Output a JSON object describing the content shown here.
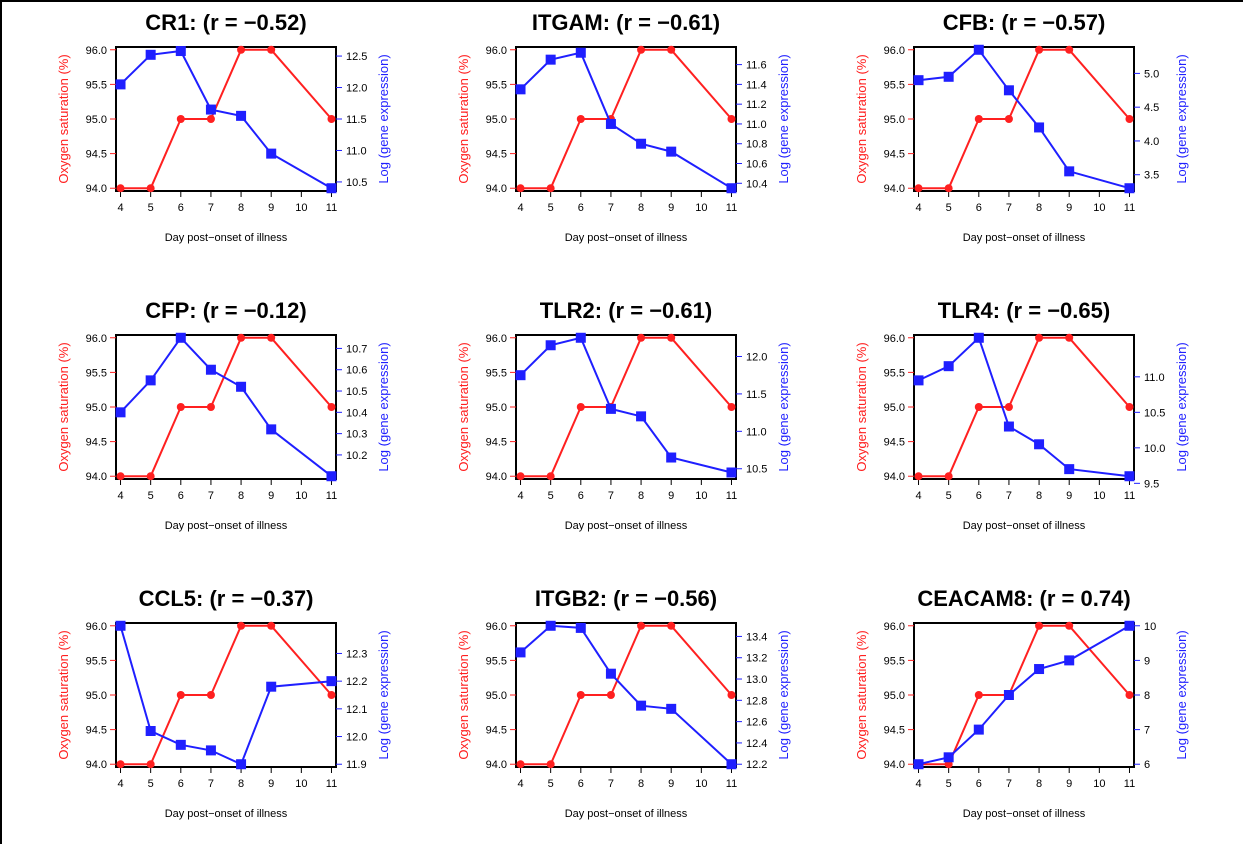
{
  "colors": {
    "oxygen": "#ff2020",
    "gene": "#1f1fff",
    "axis": "#000000"
  },
  "chart_data": [
    {
      "type": "line",
      "title": "CR1:  (r = −0.52)",
      "x": [
        4,
        5,
        6,
        7,
        8,
        9,
        11
      ],
      "xticks": [
        4,
        5,
        6,
        7,
        8,
        9,
        10,
        11
      ],
      "xlabel": "Day post−onset of illness",
      "ylabel": "Oxygen saturation (%)",
      "ylim": [
        94.0,
        96.0
      ],
      "yticks": [
        "94.0",
        "94.5",
        "95.0",
        "95.5",
        "96.0"
      ],
      "y2label": "Log (gene expression)",
      "y2lim": [
        10.4,
        12.6
      ],
      "y2ticks": [
        "10.5",
        "11.0",
        "11.5",
        "12.0",
        "12.5"
      ],
      "series": [
        {
          "axis": "left",
          "marker": "circle",
          "values": [
            94,
            94,
            95,
            95,
            96,
            96,
            95
          ]
        },
        {
          "axis": "right",
          "marker": "square",
          "values": [
            12.05,
            12.52,
            12.58,
            11.65,
            11.55,
            10.95,
            10.4
          ]
        }
      ]
    },
    {
      "type": "line",
      "title": "ITGAM:  (r = −0.61)",
      "x": [
        4,
        5,
        6,
        7,
        8,
        9,
        11
      ],
      "xticks": [
        4,
        5,
        6,
        7,
        8,
        9,
        10,
        11
      ],
      "xlabel": "Day post−onset of illness",
      "ylabel": "Oxygen saturation (%)",
      "ylim": [
        94.0,
        96.0
      ],
      "yticks": [
        "94.0",
        "94.5",
        "95.0",
        "95.5",
        "96.0"
      ],
      "y2label": "Log (gene expression)",
      "y2lim": [
        10.35,
        11.75
      ],
      "y2ticks": [
        "10.4",
        "10.6",
        "10.8",
        "11.0",
        "11.2",
        "11.4",
        "11.6"
      ],
      "series": [
        {
          "axis": "left",
          "marker": "circle",
          "values": [
            94,
            94,
            95,
            95,
            96,
            96,
            95
          ]
        },
        {
          "axis": "right",
          "marker": "square",
          "values": [
            11.35,
            11.65,
            11.72,
            11.0,
            10.8,
            10.72,
            10.35
          ]
        }
      ]
    },
    {
      "type": "line",
      "title": "CFB:  (r = −0.57)",
      "x": [
        4,
        5,
        6,
        7,
        8,
        9,
        11
      ],
      "xticks": [
        4,
        5,
        6,
        7,
        8,
        9,
        10,
        11
      ],
      "xlabel": "Day post−onset of illness",
      "ylabel": "Oxygen saturation (%)",
      "ylim": [
        94.0,
        96.0
      ],
      "yticks": [
        "94.0",
        "94.5",
        "95.0",
        "95.5",
        "96.0"
      ],
      "y2label": "Log (gene expression)",
      "y2lim": [
        3.3,
        5.35
      ],
      "y2ticks": [
        "3.5",
        "4.0",
        "4.5",
        "5.0"
      ],
      "series": [
        {
          "axis": "left",
          "marker": "circle",
          "values": [
            94,
            94,
            95,
            95,
            96,
            96,
            95
          ]
        },
        {
          "axis": "right",
          "marker": "square",
          "values": [
            4.9,
            4.95,
            5.35,
            4.75,
            4.2,
            3.55,
            3.3
          ]
        }
      ]
    },
    {
      "type": "line",
      "title": "CFP:  (r = −0.12)",
      "x": [
        4,
        5,
        6,
        7,
        8,
        9,
        11
      ],
      "xticks": [
        4,
        5,
        6,
        7,
        8,
        9,
        10,
        11
      ],
      "xlabel": "Day post−onset of illness",
      "ylabel": "Oxygen saturation (%)",
      "ylim": [
        94.0,
        96.0
      ],
      "yticks": [
        "94.0",
        "94.5",
        "95.0",
        "95.5",
        "96.0"
      ],
      "y2label": "Log (gene expression)",
      "y2lim": [
        10.1,
        10.75
      ],
      "y2ticks": [
        "10.2",
        "10.3",
        "10.4",
        "10.5",
        "10.6",
        "10.7"
      ],
      "series": [
        {
          "axis": "left",
          "marker": "circle",
          "values": [
            94,
            94,
            95,
            95,
            96,
            96,
            95
          ]
        },
        {
          "axis": "right",
          "marker": "square",
          "values": [
            10.4,
            10.55,
            10.75,
            10.6,
            10.52,
            10.32,
            10.1
          ]
        }
      ]
    },
    {
      "type": "line",
      "title": "TLR2:  (r = −0.61)",
      "x": [
        4,
        5,
        6,
        7,
        8,
        9,
        11
      ],
      "xticks": [
        4,
        5,
        6,
        7,
        8,
        9,
        10,
        11
      ],
      "xlabel": "Day post−onset of illness",
      "ylabel": "Oxygen saturation (%)",
      "ylim": [
        94.0,
        96.0
      ],
      "yticks": [
        "94.0",
        "94.5",
        "95.0",
        "95.5",
        "96.0"
      ],
      "y2label": "Log (gene expression)",
      "y2lim": [
        10.4,
        12.25
      ],
      "y2ticks": [
        "10.5",
        "11.0",
        "11.5",
        "12.0"
      ],
      "series": [
        {
          "axis": "left",
          "marker": "circle",
          "values": [
            94,
            94,
            95,
            95,
            96,
            96,
            95
          ]
        },
        {
          "axis": "right",
          "marker": "square",
          "values": [
            11.75,
            12.15,
            12.25,
            11.3,
            11.2,
            10.65,
            10.45
          ]
        }
      ]
    },
    {
      "type": "line",
      "title": "TLR4:  (r = −0.65)",
      "x": [
        4,
        5,
        6,
        7,
        8,
        9,
        11
      ],
      "xticks": [
        4,
        5,
        6,
        7,
        8,
        9,
        10,
        11
      ],
      "xlabel": "Day post−onset of illness",
      "ylabel": "Oxygen saturation (%)",
      "ylim": [
        94.0,
        96.0
      ],
      "yticks": [
        "94.0",
        "94.5",
        "95.0",
        "95.5",
        "96.0"
      ],
      "y2label": "Log (gene expression)",
      "y2lim": [
        9.6,
        11.55
      ],
      "y2ticks": [
        "9.5",
        "10.0",
        "10.5",
        "11.0"
      ],
      "series": [
        {
          "axis": "left",
          "marker": "circle",
          "values": [
            94,
            94,
            95,
            95,
            96,
            96,
            95
          ]
        },
        {
          "axis": "right",
          "marker": "square",
          "values": [
            10.95,
            11.15,
            11.55,
            10.3,
            10.05,
            9.7,
            9.6
          ]
        }
      ]
    },
    {
      "type": "line",
      "title": "CCL5:  (r = −0.37)",
      "x": [
        4,
        5,
        6,
        7,
        8,
        9,
        11
      ],
      "xticks": [
        4,
        5,
        6,
        7,
        8,
        9,
        10,
        11
      ],
      "xlabel": "Day post−onset of illness",
      "ylabel": "Oxygen saturation (%)",
      "ylim": [
        94.0,
        96.0
      ],
      "yticks": [
        "94.0",
        "94.5",
        "95.0",
        "95.5",
        "96.0"
      ],
      "y2label": "Log (gene expression)",
      "y2lim": [
        11.9,
        12.4
      ],
      "y2ticks": [
        "11.9",
        "12.0",
        "12.1",
        "12.2",
        "12.3"
      ],
      "series": [
        {
          "axis": "left",
          "marker": "circle",
          "values": [
            94,
            94,
            95,
            95,
            96,
            96,
            95
          ]
        },
        {
          "axis": "right",
          "marker": "square",
          "values": [
            12.4,
            12.02,
            11.97,
            11.95,
            11.9,
            12.18,
            12.2
          ]
        }
      ]
    },
    {
      "type": "line",
      "title": "ITGB2:  (r = −0.56)",
      "x": [
        4,
        5,
        6,
        7,
        8,
        9,
        11
      ],
      "xticks": [
        4,
        5,
        6,
        7,
        8,
        9,
        10,
        11
      ],
      "xlabel": "Day post−onset of illness",
      "ylabel": "Oxygen saturation (%)",
      "ylim": [
        94.0,
        96.0
      ],
      "yticks": [
        "94.0",
        "94.5",
        "95.0",
        "95.5",
        "96.0"
      ],
      "y2label": "Log (gene expression)",
      "y2lim": [
        12.2,
        13.5
      ],
      "y2ticks": [
        "12.2",
        "12.4",
        "12.6",
        "12.8",
        "13.0",
        "13.2",
        "13.4"
      ],
      "series": [
        {
          "axis": "left",
          "marker": "circle",
          "values": [
            94,
            94,
            95,
            95,
            96,
            96,
            95
          ]
        },
        {
          "axis": "right",
          "marker": "square",
          "values": [
            13.25,
            13.5,
            13.48,
            13.05,
            12.75,
            12.72,
            12.2
          ]
        }
      ]
    },
    {
      "type": "line",
      "title": "CEACAM8:  (r = 0.74)",
      "x": [
        4,
        5,
        6,
        7,
        8,
        9,
        11
      ],
      "xticks": [
        4,
        5,
        6,
        7,
        8,
        9,
        10,
        11
      ],
      "xlabel": "Day post−onset of illness",
      "ylabel": "Oxygen saturation (%)",
      "ylim": [
        94.0,
        96.0
      ],
      "yticks": [
        "94.0",
        "94.5",
        "95.0",
        "95.5",
        "96.0"
      ],
      "y2label": "Log (gene expression)",
      "y2lim": [
        6.0,
        10.0
      ],
      "y2ticks": [
        "6",
        "7",
        "8",
        "9",
        "10"
      ],
      "series": [
        {
          "axis": "left",
          "marker": "circle",
          "values": [
            94,
            94,
            95,
            95,
            96,
            96,
            95
          ]
        },
        {
          "axis": "right",
          "marker": "square",
          "values": [
            6.0,
            6.2,
            7.0,
            8.0,
            8.75,
            9.0,
            10.0
          ]
        }
      ]
    }
  ]
}
